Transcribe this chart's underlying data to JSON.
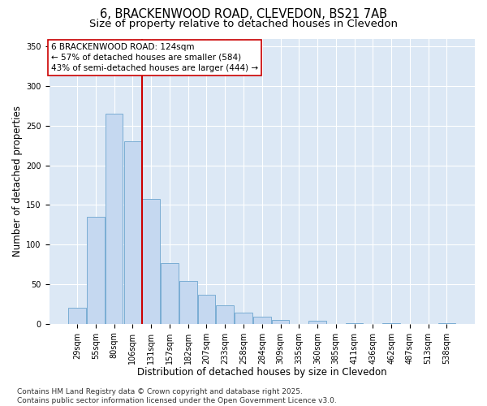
{
  "title_line1": "6, BRACKENWOOD ROAD, CLEVEDON, BS21 7AB",
  "title_line2": "Size of property relative to detached houses in Clevedon",
  "xlabel": "Distribution of detached houses by size in Clevedon",
  "ylabel": "Number of detached properties",
  "footer_line1": "Contains HM Land Registry data © Crown copyright and database right 2025.",
  "footer_line2": "Contains public sector information licensed under the Open Government Licence v3.0.",
  "bin_labels": [
    "29sqm",
    "55sqm",
    "80sqm",
    "106sqm",
    "131sqm",
    "157sqm",
    "182sqm",
    "207sqm",
    "233sqm",
    "258sqm",
    "284sqm",
    "309sqm",
    "335sqm",
    "360sqm",
    "385sqm",
    "411sqm",
    "436sqm",
    "462sqm",
    "487sqm",
    "513sqm",
    "538sqm"
  ],
  "bar_values": [
    20,
    135,
    265,
    230,
    158,
    77,
    54,
    37,
    23,
    14,
    9,
    5,
    0,
    4,
    0,
    1,
    0,
    1,
    0,
    0,
    1
  ],
  "bar_color": "#c5d8f0",
  "bar_edge_color": "#7aadd4",
  "vline_color": "#cc0000",
  "annotation_text": "6 BRACKENWOOD ROAD: 124sqm\n← 57% of detached houses are smaller (584)\n43% of semi-detached houses are larger (444) →",
  "annotation_box_edgecolor": "#cc0000",
  "annotation_box_facecolor": "#ffffff",
  "ylim": [
    0,
    360
  ],
  "yticks": [
    0,
    50,
    100,
    150,
    200,
    250,
    300,
    350
  ],
  "fig_bg_color": "#ffffff",
  "plot_bg_color": "#dce8f5",
  "title_fontsize": 10.5,
  "subtitle_fontsize": 9.5,
  "axis_label_fontsize": 8.5,
  "tick_fontsize": 7,
  "annotation_fontsize": 7.5,
  "footer_fontsize": 6.5
}
